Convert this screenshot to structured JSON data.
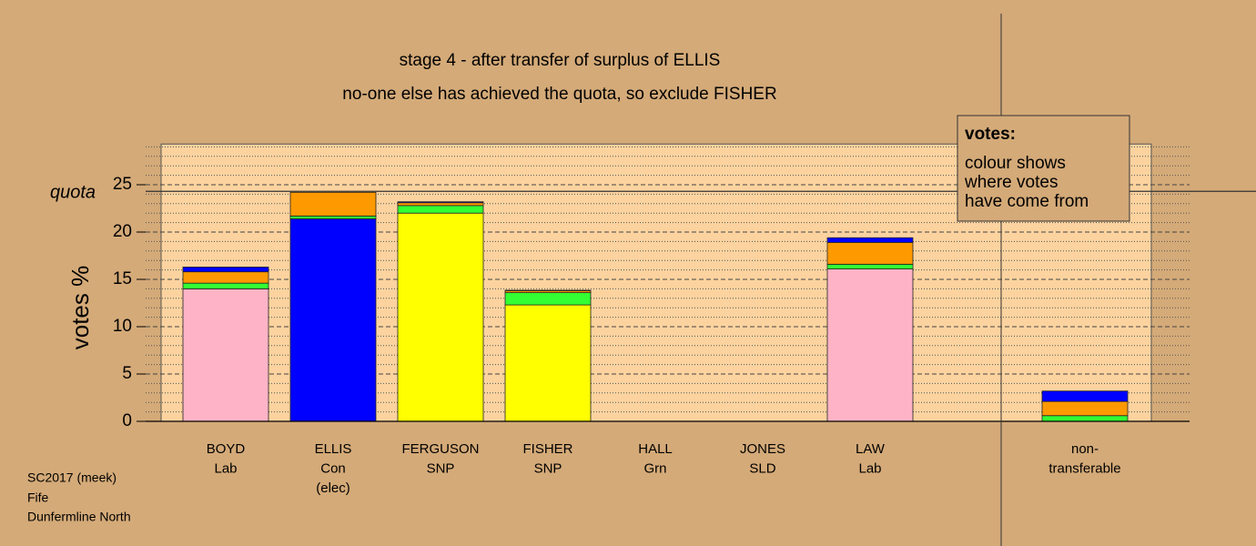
{
  "chart_data": {
    "type": "bar",
    "stacked": true,
    "title": "stage 4 - after transfer of surplus of ELLIS",
    "subtitle": "no-one else has achieved the quota, so exclude FISHER",
    "y_label": "votes %",
    "quota": {
      "value": 24.3,
      "label": "quota"
    },
    "categories": [
      [
        "BOYD",
        "Lab"
      ],
      [
        "ELLIS",
        "Con",
        "(elec)"
      ],
      [
        "FERGUSON",
        "SNP"
      ],
      [
        "FISHER",
        "SNP"
      ],
      [
        "HALL",
        "Grn"
      ],
      [
        "JONES",
        "SLD"
      ],
      [
        "LAW",
        "Lab"
      ],
      null,
      [
        "non-",
        "transferable"
      ]
    ],
    "series": [
      {
        "colors": [
          "#ffb3c6",
          "#0000ff",
          "#ffff00",
          "#ffff00",
          "#33ff33",
          "#ff9900",
          "#ffb3c6",
          null,
          "#888888"
        ],
        "values": [
          14.0,
          21.4,
          22.0,
          12.3,
          0,
          0,
          16.1,
          null,
          0
        ]
      },
      {
        "color": "#33ff33",
        "values": [
          0.6,
          0.3,
          0.8,
          1.3,
          0,
          0,
          0.5,
          null,
          0.6
        ]
      },
      {
        "color": "#ff9900",
        "values": [
          1.2,
          2.5,
          0.3,
          0.2,
          0,
          0,
          2.3,
          null,
          1.5
        ]
      },
      {
        "color": "#0000ff",
        "values": [
          0.5,
          0,
          0.1,
          0.05,
          0,
          0,
          0.5,
          null,
          1.1
        ]
      }
    ],
    "ylim": [
      0,
      29.3
    ],
    "yticks": [
      0,
      5,
      10,
      15,
      20,
      25
    ],
    "yminorticks": [
      1,
      2,
      3,
      4,
      6,
      7,
      8,
      9,
      11,
      12,
      13,
      14,
      16,
      17,
      18,
      19,
      21,
      22,
      23,
      24,
      26,
      27,
      28,
      29
    ],
    "grid": true,
    "legend_title": "votes:",
    "legend_text": [
      "colour shows",
      "where votes",
      "have come from"
    ],
    "footer": [
      "SC2017 (meek)",
      "Fife",
      "Dunfermline North"
    ]
  }
}
